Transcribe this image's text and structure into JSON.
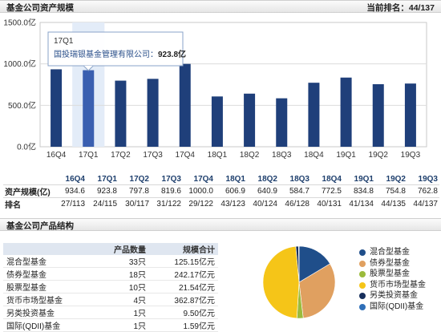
{
  "section1": {
    "title": "基金公司资产规模",
    "rank_text": "当前排名：44/137"
  },
  "section2": {
    "title": "基金公司产品结构"
  },
  "chart_data": {
    "type": "bar",
    "categories": [
      "16Q4",
      "17Q1",
      "17Q2",
      "17Q3",
      "17Q4",
      "18Q1",
      "18Q2",
      "18Q3",
      "18Q4",
      "19Q1",
      "19Q2",
      "19Q3"
    ],
    "values": [
      934.6,
      923.8,
      797.8,
      819.6,
      1000.0,
      606.9,
      640.9,
      584.7,
      772.5,
      834.8,
      754.8,
      762.8
    ],
    "ylim": [
      0,
      1500
    ],
    "yticks": [
      "0.0亿",
      "500.0亿",
      "1000.0亿",
      "1500.0亿"
    ],
    "grid": true,
    "bar_color": "#1f3f7a",
    "highlight_color": "#3a5fb0",
    "highlight_index": 1,
    "tooltip": {
      "title": "17Q1",
      "label": "国投瑞银基金管理有限公司",
      "value": "923.8亿"
    }
  },
  "stats_table": {
    "row_labels": [
      "资产规模(亿)",
      "排名"
    ],
    "columns": [
      {
        "period": "16Q4",
        "size": "934.6",
        "rank": "27/113"
      },
      {
        "period": "17Q1",
        "size": "923.8",
        "rank": "24/115"
      },
      {
        "period": "17Q2",
        "size": "797.8",
        "rank": "30/117"
      },
      {
        "period": "17Q3",
        "size": "819.6",
        "rank": "31/122"
      },
      {
        "period": "17Q4",
        "size": "1000.0",
        "rank": "29/122"
      },
      {
        "period": "18Q1",
        "size": "606.9",
        "rank": "43/123"
      },
      {
        "period": "18Q2",
        "size": "640.9",
        "rank": "40/124"
      },
      {
        "period": "18Q3",
        "size": "584.7",
        "rank": "46/128"
      },
      {
        "period": "18Q4",
        "size": "772.5",
        "rank": "40/131"
      },
      {
        "period": "19Q1",
        "size": "834.8",
        "rank": "41/134"
      },
      {
        "period": "19Q2",
        "size": "754.8",
        "rank": "44/135"
      },
      {
        "period": "19Q3",
        "size": "762.8",
        "rank": "44/137"
      }
    ]
  },
  "product_table": {
    "headers": [
      "",
      "产品数量",
      "规模合计"
    ],
    "rows": [
      {
        "name": "混合型基金",
        "count": "33只",
        "size": "125.15亿元"
      },
      {
        "name": "债券型基金",
        "count": "18只",
        "size": "242.17亿元"
      },
      {
        "name": "股票型基金",
        "count": "10只",
        "size": "21.54亿元"
      },
      {
        "name": "货币市场型基金",
        "count": "4只",
        "size": "362.87亿元"
      },
      {
        "name": "另类投资基金",
        "count": "1只",
        "size": "9.50亿元"
      },
      {
        "name": "国际(QDII)基金",
        "count": "1只",
        "size": "1.59亿元"
      }
    ]
  },
  "pie": {
    "type": "pie",
    "slices": [
      {
        "name": "混合型基金",
        "value": 125.15,
        "color": "#1f4e8a"
      },
      {
        "name": "债券型基金",
        "value": 242.17,
        "color": "#e0a060"
      },
      {
        "name": "股票型基金",
        "value": 21.54,
        "color": "#9bbb3c"
      },
      {
        "name": "货币市场型基金",
        "value": 362.87,
        "color": "#f5c518"
      },
      {
        "name": "另类投资基金",
        "value": 9.5,
        "color": "#172f5c"
      },
      {
        "name": "国际(QDII)基金",
        "value": 1.59,
        "color": "#2f6fb8"
      }
    ]
  }
}
